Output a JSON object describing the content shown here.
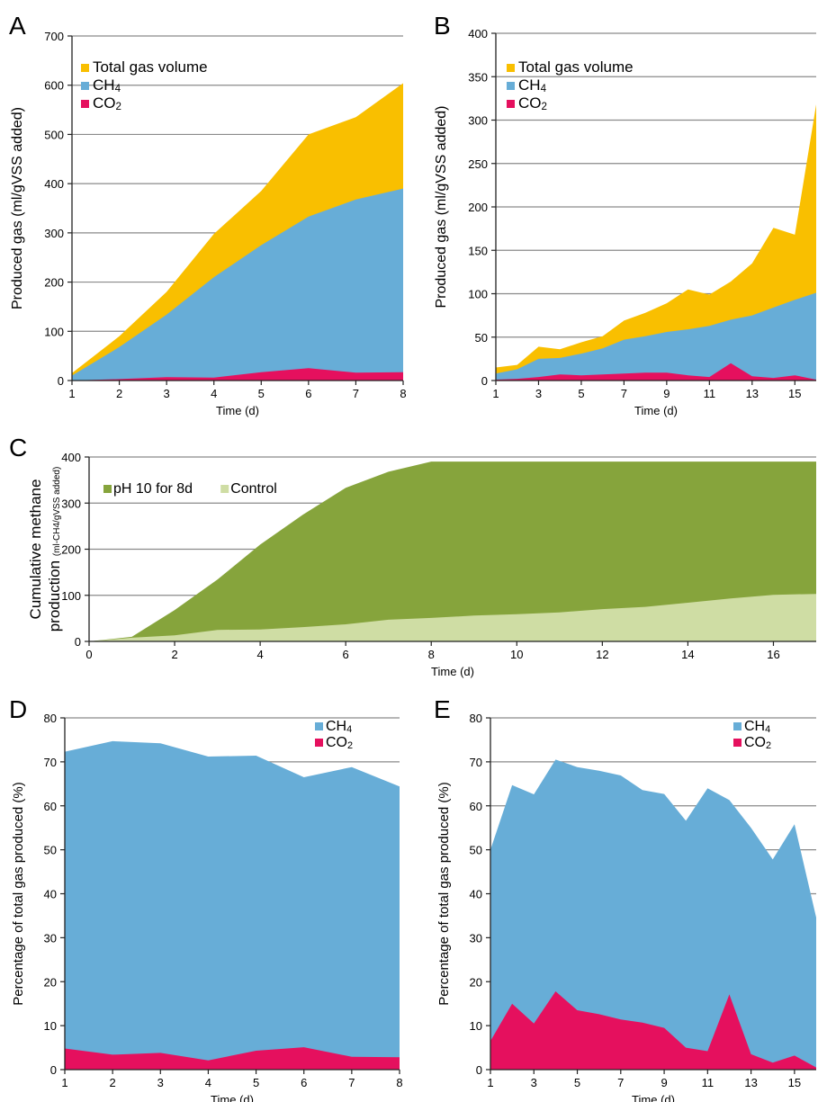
{
  "colors": {
    "total": "#F9BF00",
    "ch4": "#67ADD7",
    "co2": "#E5105E",
    "ph10": "#86A43C",
    "control": "#CFDDA4",
    "grid": "#8a8a8a",
    "axis": "#222222"
  },
  "chart_data": [
    {
      "panel": "A",
      "type": "area",
      "xlabel": "Time (d)",
      "ylabel": "Produced gas (ml/gVSS added)",
      "xlim": [
        1,
        8
      ],
      "ylim": [
        0,
        700
      ],
      "xticks": [
        "1",
        "2",
        "3",
        "4",
        "5",
        "6",
        "7",
        "8"
      ],
      "yticks": [
        "0",
        "100",
        "200",
        "300",
        "400",
        "500",
        "600",
        "700"
      ],
      "grid": "horizontal",
      "legend": [
        "Total gas volume",
        "CH4",
        "CO2"
      ],
      "x": [
        1,
        2,
        3,
        4,
        5,
        6,
        7,
        8
      ],
      "series": [
        {
          "name": "Total gas volume",
          "color_key": "total",
          "values": [
            15,
            90,
            180,
            298,
            385,
            500,
            535,
            604
          ]
        },
        {
          "name": "CH4",
          "color_key": "ch4",
          "values": [
            10,
            68,
            134,
            210,
            275,
            333,
            368,
            390
          ]
        },
        {
          "name": "CO2",
          "color_key": "co2",
          "values": [
            0,
            3,
            7,
            6,
            17,
            25,
            16,
            17
          ]
        }
      ]
    },
    {
      "panel": "B",
      "type": "area",
      "xlabel": "Time (d)",
      "ylabel": "Produced gas (ml/gVSS added)",
      "xlim": [
        1,
        16
      ],
      "ylim": [
        0,
        400
      ],
      "xticks": [
        "1",
        "3",
        "5",
        "7",
        "9",
        "11",
        "13",
        "15"
      ],
      "yticks": [
        "0",
        "50",
        "100",
        "150",
        "200",
        "250",
        "300",
        "350",
        "400"
      ],
      "grid": "horizontal",
      "legend": [
        "Total gas volume",
        "CH4",
        "CO2"
      ],
      "x": [
        1,
        2,
        3,
        4,
        5,
        6,
        7,
        8,
        9,
        10,
        11,
        12,
        13,
        14,
        15,
        16
      ],
      "series": [
        {
          "name": "Total gas volume",
          "color_key": "total",
          "values": [
            15,
            18,
            39,
            36,
            44,
            51,
            69,
            78,
            89,
            105,
            99,
            114,
            135,
            176,
            168,
            318
          ]
        },
        {
          "name": "CH4",
          "color_key": "ch4",
          "values": [
            8,
            13,
            25,
            26,
            31,
            37,
            47,
            51,
            56,
            59,
            63,
            70,
            75,
            84,
            93,
            101
          ]
        },
        {
          "name": "CO2",
          "color_key": "co2",
          "values": [
            1,
            2,
            4,
            7,
            6,
            7,
            8,
            9,
            9,
            6,
            4,
            20,
            5,
            3,
            6,
            1
          ]
        }
      ]
    },
    {
      "panel": "C",
      "type": "area",
      "xlabel": "Time (d)",
      "ylabel_line1": "Cumulative methane",
      "ylabel_line2": "production",
      "ylabel_small": "(ml-CH4/gVSS added)",
      "xlim": [
        0,
        17
      ],
      "ylim": [
        0,
        400
      ],
      "xticks": [
        "0",
        "2",
        "4",
        "6",
        "8",
        "10",
        "12",
        "14",
        "16"
      ],
      "yticks": [
        "0",
        "100",
        "200",
        "300",
        "400"
      ],
      "grid": "horizontal",
      "legend": [
        "pH 10 for 8d",
        "Control"
      ],
      "x": [
        0,
        1,
        2,
        3,
        4,
        5,
        6,
        7,
        8,
        9,
        10,
        11,
        12,
        13,
        14,
        15,
        16,
        17
      ],
      "series": [
        {
          "name": "pH 10 for 8d",
          "color_key": "ph10",
          "values": [
            0,
            10,
            68,
            134,
            210,
            275,
            333,
            368,
            390,
            390,
            390,
            390,
            390,
            390,
            390,
            390,
            390,
            390
          ]
        },
        {
          "name": "Control",
          "color_key": "control",
          "values": [
            0,
            8,
            13,
            25,
            26,
            31,
            37,
            47,
            51,
            56,
            59,
            63,
            70,
            75,
            84,
            93,
            101,
            103
          ]
        }
      ]
    },
    {
      "panel": "D",
      "type": "area",
      "xlabel": "Time (d)",
      "ylabel": "Percentage of total gas produced (%)",
      "xlim": [
        1,
        8
      ],
      "ylim": [
        0,
        80
      ],
      "xticks": [
        "1",
        "2",
        "3",
        "4",
        "5",
        "6",
        "7",
        "8"
      ],
      "yticks": [
        "0",
        "10",
        "20",
        "30",
        "40",
        "50",
        "60",
        "70",
        "80"
      ],
      "grid": "horizontal",
      "legend": [
        "CH4",
        "CO2"
      ],
      "x": [
        1,
        2,
        3,
        4,
        5,
        6,
        7,
        8
      ],
      "series": [
        {
          "name": "CH4",
          "color_key": "ch4",
          "values": [
            72.3,
            74.7,
            74.2,
            71.2,
            71.4,
            66.5,
            68.8,
            64.4
          ]
        },
        {
          "name": "CO2",
          "color_key": "co2",
          "values": [
            4.8,
            3.4,
            3.8,
            2.1,
            4.3,
            5.1,
            2.9,
            2.8
          ]
        }
      ]
    },
    {
      "panel": "E",
      "type": "area",
      "xlabel": "Time (d)",
      "ylabel": "Percentage of total gas produced (%)",
      "xlim": [
        1,
        16
      ],
      "ylim": [
        0,
        80
      ],
      "xticks": [
        "1",
        "3",
        "5",
        "7",
        "9",
        "11",
        "13",
        "15"
      ],
      "yticks": [
        "0",
        "10",
        "20",
        "30",
        "40",
        "50",
        "60",
        "70",
        "80"
      ],
      "grid": "horizontal",
      "legend": [
        "CH4",
        "CO2"
      ],
      "x": [
        1,
        2,
        3,
        4,
        5,
        6,
        7,
        8,
        9,
        10,
        11,
        12,
        13,
        14,
        15,
        16
      ],
      "series": [
        {
          "name": "CH4",
          "color_key": "ch4",
          "values": [
            50,
            64.7,
            62.6,
            70.5,
            68.8,
            68,
            66.9,
            63.6,
            62.7,
            56.6,
            64,
            61.3,
            55,
            47.8,
            55.8,
            34.6
          ]
        },
        {
          "name": "CO2",
          "color_key": "co2",
          "values": [
            6.5,
            15,
            10.5,
            17.8,
            13.5,
            12.6,
            11.4,
            10.7,
            9.5,
            5,
            4.2,
            17.1,
            3.5,
            1.6,
            3.2,
            0.5
          ]
        }
      ]
    }
  ]
}
